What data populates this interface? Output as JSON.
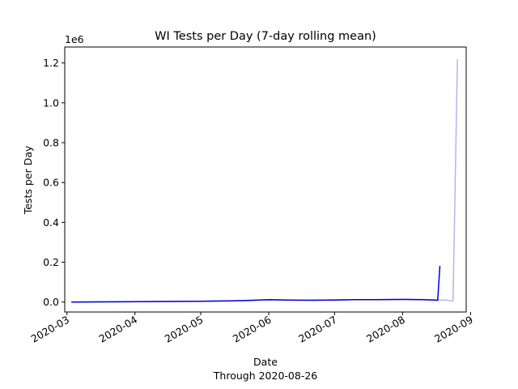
{
  "chart_data": {
    "type": "line",
    "title": "WI Tests per Day (7-day rolling mean)",
    "xlabel": "Date",
    "xlabel_note": "Through 2020-08-26",
    "ylabel": "Tests per Day",
    "y_offset_label": "1e6",
    "xlim": [
      "2020-02-29",
      "2020-08-30"
    ],
    "ylim": [
      -0.05,
      1.28
    ],
    "x_ticks": [
      "2020-03",
      "2020-04",
      "2020-05",
      "2020-06",
      "2020-07",
      "2020-08",
      "2020-09"
    ],
    "y_ticks": [
      "0.0",
      "0.2",
      "0.4",
      "0.6",
      "0.8",
      "1.0",
      "1.2"
    ],
    "grid": false,
    "series": [
      {
        "color": "#b4b4f5",
        "role": "daily",
        "x": [
          "2020-03-03",
          "2020-03-15",
          "2020-04-01",
          "2020-04-15",
          "2020-05-01",
          "2020-05-15",
          "2020-05-23",
          "2020-06-01",
          "2020-06-10",
          "2020-06-20",
          "2020-07-01",
          "2020-07-10",
          "2020-07-20",
          "2020-08-01",
          "2020-08-10",
          "2020-08-18",
          "2020-08-21",
          "2020-08-24",
          "2020-08-26"
        ],
        "values": [
          0.0,
          0.001,
          0.002,
          0.003,
          0.004,
          0.006,
          0.009,
          0.011,
          0.009,
          0.01,
          0.011,
          0.012,
          0.012,
          0.014,
          0.013,
          0.01,
          0.01,
          0.004,
          1.22
        ]
      },
      {
        "color": "#0000d8",
        "role": "rolling-mean",
        "x": [
          "2020-03-03",
          "2020-03-15",
          "2020-04-01",
          "2020-04-15",
          "2020-05-01",
          "2020-05-15",
          "2020-05-23",
          "2020-06-01",
          "2020-06-10",
          "2020-06-20",
          "2020-07-01",
          "2020-07-10",
          "2020-07-20",
          "2020-08-01",
          "2020-08-10",
          "2020-08-17",
          "2020-08-18"
        ],
        "values": [
          0.0,
          0.001,
          0.002,
          0.003,
          0.004,
          0.006,
          0.008,
          0.012,
          0.01,
          0.009,
          0.01,
          0.012,
          0.012,
          0.013,
          0.012,
          0.009,
          0.182
        ]
      }
    ]
  }
}
